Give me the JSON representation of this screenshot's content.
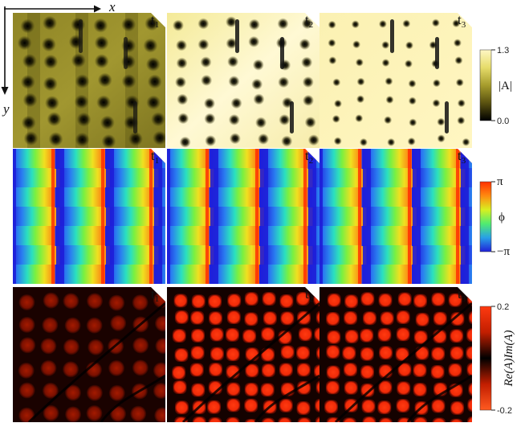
{
  "axes": {
    "x_label": "x",
    "y_label": "y"
  },
  "rows": [
    {
      "name": "amplitude",
      "panels": [
        {
          "t": "t",
          "sub": "1"
        },
        {
          "t": "t",
          "sub": "2"
        },
        {
          "t": "t",
          "sub": "3"
        }
      ],
      "colorbar": {
        "label": "|A|",
        "max": "1.3",
        "min": "0.0",
        "stops": [
          "#000000",
          "#5a5210",
          "#a69c2c",
          "#e6dc6a",
          "#fff7c4"
        ]
      }
    },
    {
      "name": "phase",
      "panels": [
        {
          "t": "t",
          "sub": "1"
        },
        {
          "t": "t",
          "sub": "2"
        },
        {
          "t": "t",
          "sub": "3"
        }
      ],
      "colorbar": {
        "label": "ϕ",
        "max": "π",
        "min": "−π",
        "stops": [
          "#2020d8",
          "#28a0e8",
          "#50ec70",
          "#d8f020",
          "#ff8a10",
          "#ff3000"
        ]
      }
    },
    {
      "name": "product",
      "panels": [
        {
          "t": "t",
          "sub": "1"
        },
        {
          "t": "t",
          "sub": "2"
        },
        {
          "t": "t",
          "sub": "3"
        }
      ],
      "colorbar": {
        "label": "Re(A)Im(A)",
        "max": "0.2",
        "min": "-0.2",
        "stops": [
          "#ff5a20",
          "#c21e00",
          "#000000",
          "#c21e00",
          "#ff3a10"
        ]
      }
    }
  ]
}
